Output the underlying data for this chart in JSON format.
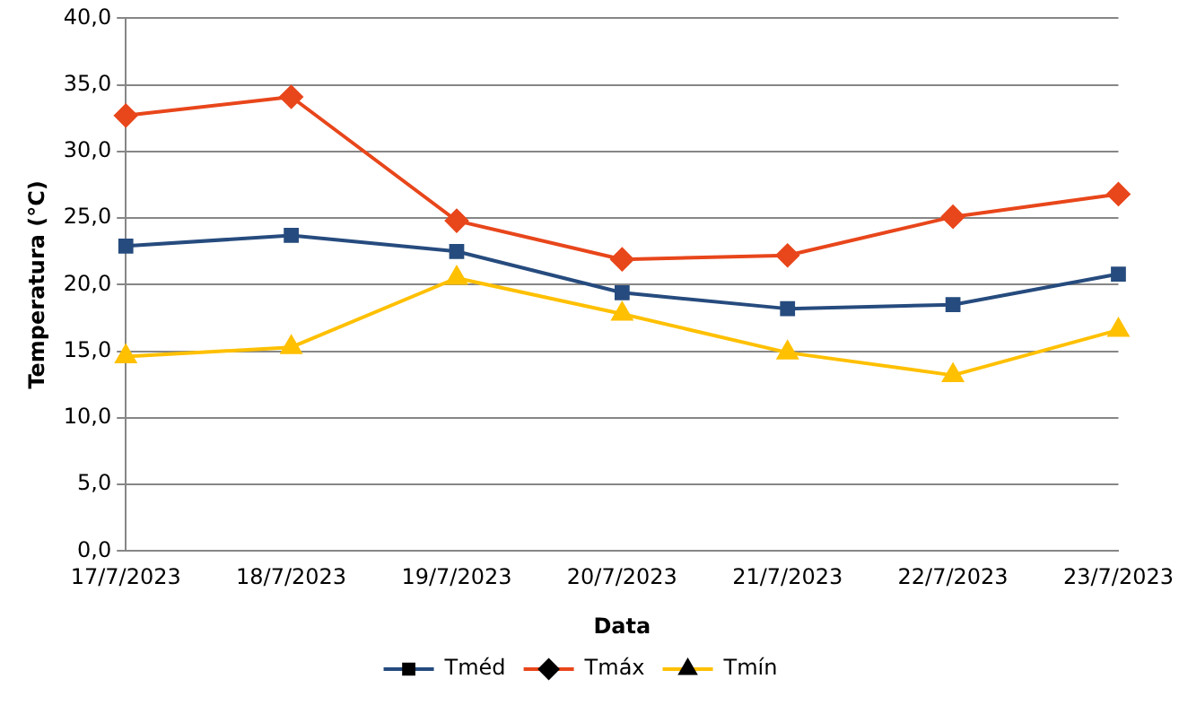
{
  "chart_data": {
    "type": "line",
    "xlabel": "Data",
    "ylabel": "Temperatura (°C)",
    "categories": [
      "17/7/2023",
      "18/7/2023",
      "19/7/2023",
      "20/7/2023",
      "21/7/2023",
      "22/7/2023",
      "23/7/2023"
    ],
    "series": [
      {
        "name": "Tméd",
        "color": "#264b7e",
        "marker": "square",
        "values": [
          22.9,
          23.7,
          22.5,
          19.4,
          18.2,
          18.5,
          20.8
        ]
      },
      {
        "name": "Tmáx",
        "color": "#e8461b",
        "marker": "diamond",
        "values": [
          32.7,
          34.1,
          24.8,
          21.9,
          22.2,
          25.1,
          26.8
        ]
      },
      {
        "name": "Tmín",
        "color": "#ffc000",
        "marker": "triangle",
        "values": [
          14.6,
          15.3,
          20.5,
          17.8,
          14.9,
          13.2,
          16.6
        ]
      }
    ],
    "ylim": [
      0,
      40
    ],
    "yticks": [
      {
        "value": 0,
        "label": "0,0"
      },
      {
        "value": 5,
        "label": "5,0"
      },
      {
        "value": 10,
        "label": "10,0"
      },
      {
        "value": 15,
        "label": "15,0"
      },
      {
        "value": 20,
        "label": "20,0"
      },
      {
        "value": 25,
        "label": "25,0"
      },
      {
        "value": 30,
        "label": "30,0"
      },
      {
        "value": 35,
        "label": "35,0"
      },
      {
        "value": 40,
        "label": "40,0"
      }
    ],
    "grid": "y",
    "legend": "bottom",
    "line_style": "solid"
  }
}
